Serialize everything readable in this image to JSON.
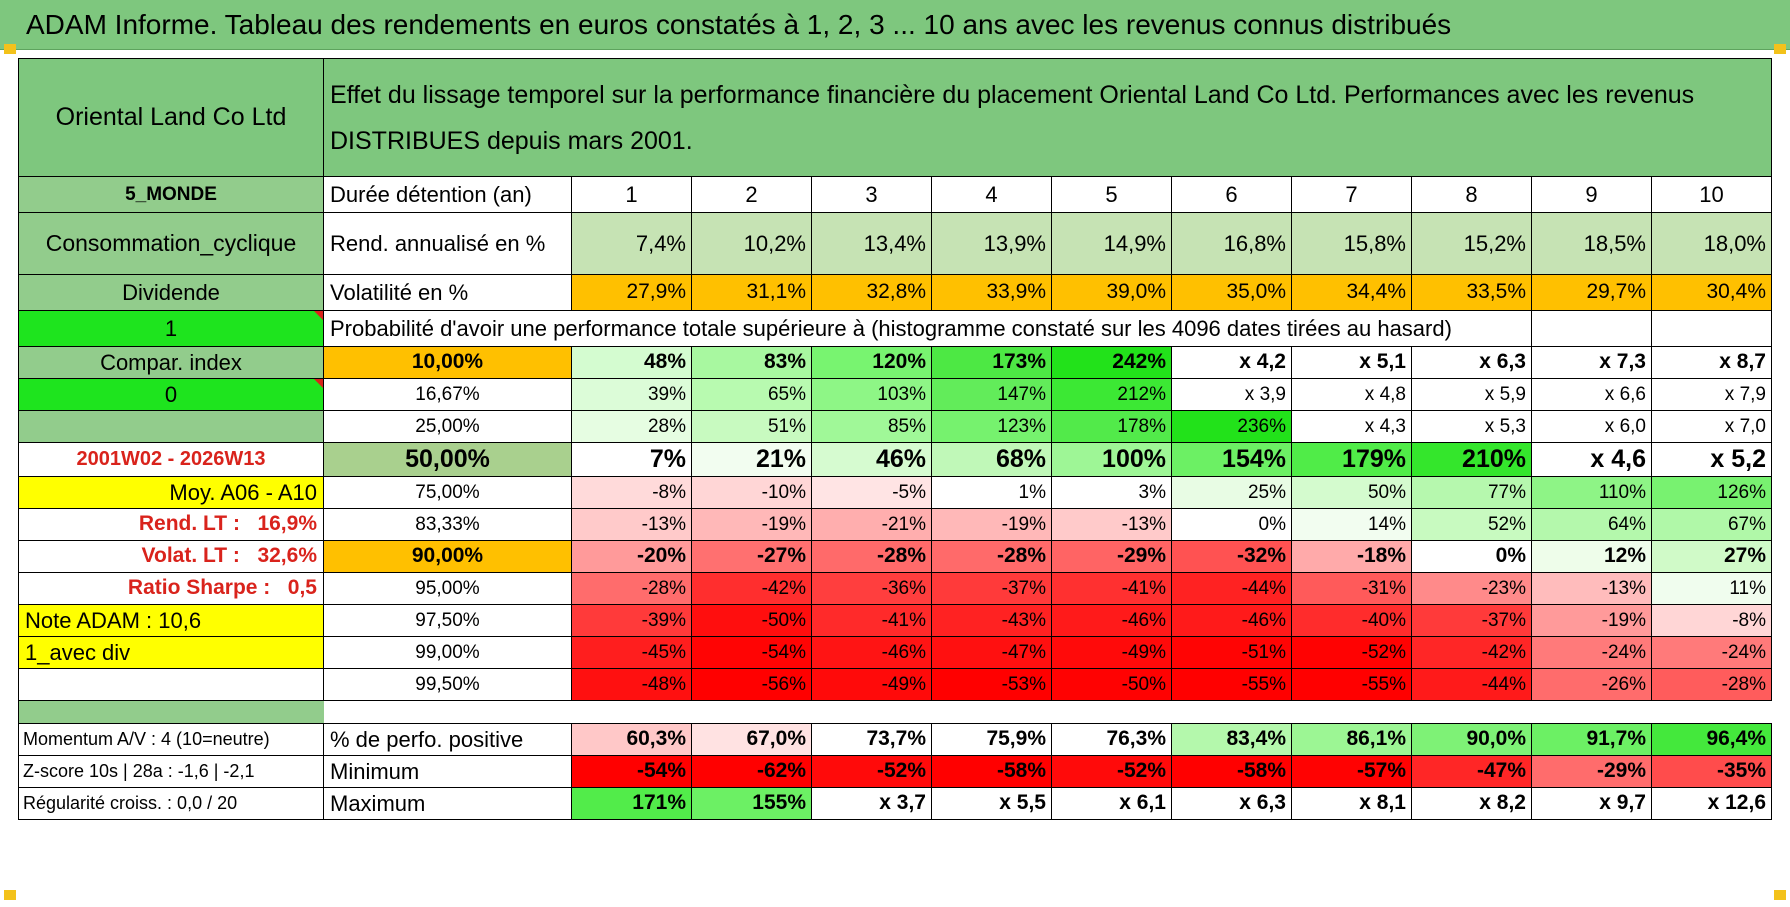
{
  "title": "ADAM Informe. Tableau des rendements en euros constatés à 1, 2, 3 ... 10 ans avec les revenus connus distribués",
  "header": {
    "company": "Oriental Land Co Ltd",
    "description_line1": "Effet du lissage temporel sur la performance financière du placement Oriental Land Co Ltd. Performances avec les revenus",
    "description_line2": "DISTRIBUES depuis mars 2001."
  },
  "left_labels": {
    "region": "5_MONDE",
    "sector": "Consommation_cyclique",
    "type": "Dividende",
    "input1": "1",
    "compar_index": "Compar. index",
    "input0": "0",
    "period": "2001W02 - 2026W13",
    "moy": "Moy. A06 - A10",
    "rend_lt_label": "Rend. LT :",
    "rend_lt_value": "16,9%",
    "volat_lt_label": "Volat. LT :",
    "volat_lt_value": "32,6%",
    "sharpe_label": "Ratio Sharpe :",
    "sharpe_value": "0,5",
    "note_adam": "Note ADAM : 10,6",
    "avec_div": "1_avec div",
    "momentum": "Momentum A/V : 4 (10=neutre)",
    "zscore": "Z-score 10s | 28a : -1,6 | -2,1",
    "regularite": "Régularité croiss. : 0,0 / 20"
  },
  "row_labels": {
    "duree": "Durée détention (an)",
    "rend": "Rend. annualisé en %",
    "vol": "Volatilité en %",
    "proba": "Probabilité d'avoir une performance totale supérieure à (histogramme constaté sur les 4096 dates tirées au hasard)",
    "perf_pos": "% de perfo. positive",
    "minimum": "Minimum",
    "maximum": "Maximum"
  },
  "years": [
    "1",
    "2",
    "3",
    "4",
    "5",
    "6",
    "7",
    "8",
    "9",
    "10"
  ],
  "rend_annualise": [
    "7,4%",
    "10,2%",
    "13,4%",
    "13,9%",
    "14,9%",
    "16,8%",
    "15,8%",
    "15,2%",
    "18,5%",
    "18,0%"
  ],
  "volatilite": [
    "27,9%",
    "31,1%",
    "32,8%",
    "33,9%",
    "39,0%",
    "35,0%",
    "34,4%",
    "33,5%",
    "29,7%",
    "30,4%"
  ],
  "percentile_rows": [
    {
      "pct": "10,00%",
      "values": [
        "48%",
        "83%",
        "120%",
        "173%",
        "242%",
        "x 4,2",
        "x 5,1",
        "x 6,3",
        "x 7,3",
        "x 8,7"
      ]
    },
    {
      "pct": "16,67%",
      "values": [
        "39%",
        "65%",
        "103%",
        "147%",
        "212%",
        "x 3,9",
        "x 4,8",
        "x 5,9",
        "x 6,6",
        "x 7,9"
      ]
    },
    {
      "pct": "25,00%",
      "values": [
        "28%",
        "51%",
        "85%",
        "123%",
        "178%",
        "236%",
        "x 4,3",
        "x 5,3",
        "x 6,0",
        "x 7,0"
      ]
    },
    {
      "pct": "50,00%",
      "values": [
        "7%",
        "21%",
        "46%",
        "68%",
        "100%",
        "154%",
        "179%",
        "210%",
        "x 4,6",
        "x 5,2"
      ]
    },
    {
      "pct": "75,00%",
      "values": [
        "-8%",
        "-10%",
        "-5%",
        "1%",
        "3%",
        "25%",
        "50%",
        "77%",
        "110%",
        "126%"
      ]
    },
    {
      "pct": "83,33%",
      "values": [
        "-13%",
        "-19%",
        "-21%",
        "-19%",
        "-13%",
        "0%",
        "14%",
        "52%",
        "64%",
        "67%"
      ]
    },
    {
      "pct": "90,00%",
      "values": [
        "-20%",
        "-27%",
        "-28%",
        "-28%",
        "-29%",
        "-32%",
        "-18%",
        "0%",
        "12%",
        "27%"
      ]
    },
    {
      "pct": "95,00%",
      "values": [
        "-28%",
        "-42%",
        "-36%",
        "-37%",
        "-41%",
        "-44%",
        "-31%",
        "-23%",
        "-13%",
        "11%"
      ]
    },
    {
      "pct": "97,50%",
      "values": [
        "-39%",
        "-50%",
        "-41%",
        "-43%",
        "-46%",
        "-46%",
        "-40%",
        "-37%",
        "-19%",
        "-8%"
      ]
    },
    {
      "pct": "99,00%",
      "values": [
        "-45%",
        "-54%",
        "-46%",
        "-47%",
        "-49%",
        "-51%",
        "-52%",
        "-42%",
        "-24%",
        "-24%"
      ]
    },
    {
      "pct": "99,50%",
      "values": [
        "-48%",
        "-56%",
        "-49%",
        "-53%",
        "-50%",
        "-55%",
        "-55%",
        "-44%",
        "-26%",
        "-28%"
      ]
    }
  ],
  "perf_positive": [
    "60,3%",
    "67,0%",
    "73,7%",
    "75,9%",
    "76,3%",
    "83,4%",
    "86,1%",
    "90,0%",
    "91,7%",
    "96,4%"
  ],
  "minimum": [
    "-54%",
    "-62%",
    "-52%",
    "-58%",
    "-52%",
    "-58%",
    "-57%",
    "-47%",
    "-29%",
    "-35%"
  ],
  "maximum": [
    "171%",
    "155%",
    "x 3,7",
    "x 5,5",
    "x 6,1",
    "x 6,3",
    "x 8,1",
    "x 8,2",
    "x 9,7",
    "x 12,6"
  ],
  "colors": {
    "header_green": "#7ec77e",
    "label_green": "#92cc8c",
    "bright_green": "#1ee41e",
    "orange": "#ffc000",
    "yellow": "#ffff00",
    "red_text": "#d9231c"
  },
  "cell_colors": {
    "rend": [
      "#c6e3b4",
      "#c6e3b4",
      "#c6e3b4",
      "#c6e3b4",
      "#c6e3b4",
      "#c6e3b4",
      "#c6e3b4",
      "#c6e3b4",
      "#c6e3b4",
      "#c6e3b4"
    ],
    "vol": [
      "#ffc000",
      "#ffc000",
      "#ffc000",
      "#ffc000",
      "#ffc000",
      "#ffc000",
      "#ffc000",
      "#ffc000",
      "#ffc000",
      "#ffc000"
    ],
    "percentiles": [
      [
        "#d4fcd0",
        "#a8f8a0",
        "#78f470",
        "#4de844",
        "#22e21a",
        "#ffffff",
        "#ffffff",
        "#ffffff",
        "#ffffff",
        "#ffffff"
      ],
      [
        "#dcfcd8",
        "#b8fab0",
        "#8ef686",
        "#62ec5a",
        "#3ce834",
        "#ffffff",
        "#ffffff",
        "#ffffff",
        "#ffffff",
        "#ffffff"
      ],
      [
        "#e6fde2",
        "#c8fac0",
        "#a0f898",
        "#76f26e",
        "#52ea4a",
        "#22e21a",
        "#ffffff",
        "#ffffff",
        "#ffffff",
        "#ffffff"
      ],
      [
        "#ffffff",
        "#f2fdf0",
        "#d6fbd0",
        "#c0f8b8",
        "#9ef696",
        "#6cf064",
        "#50ec48",
        "#34e62c",
        "#ffffff",
        "#ffffff"
      ],
      [
        "#ffdada",
        "#ffd6d6",
        "#ffe4e4",
        "#ffffff",
        "#ffffff",
        "#e8fce4",
        "#d4fbce",
        "#b6f8ae",
        "#8ef486",
        "#78f270"
      ],
      [
        "#ffcaca",
        "#ffb8b8",
        "#ffaeae",
        "#ffb8b8",
        "#ffcaca",
        "#ffffff",
        "#f2fdf0",
        "#c8fac0",
        "#b4f8ac",
        "#b0f8a8"
      ],
      [
        "#ff9a9a",
        "#ff7070",
        "#ff6a6a",
        "#ff6a6a",
        "#ff6464",
        "#ff5252",
        "#ffaaaa",
        "#ffffff",
        "#eefdea",
        "#d0fac8"
      ],
      [
        "#ff6c6c",
        "#ff2e2e",
        "#ff3e3e",
        "#ff3a3a",
        "#ff3030",
        "#ff2222",
        "#ff5a5a",
        "#ff8a8a",
        "#ffbcbc",
        "#f0fdee"
      ],
      [
        "#ff3a3a",
        "#ff0e0e",
        "#ff2a2a",
        "#ff2222",
        "#ff1a1a",
        "#ff1a1a",
        "#ff2c2c",
        "#ff3a3a",
        "#ff9a9a",
        "#ffd6d6"
      ],
      [
        "#ff1e1e",
        "#ff0404",
        "#ff1414",
        "#ff1010",
        "#ff0a0a",
        "#ff0404",
        "#ff0202",
        "#ff2626",
        "#ff7a7a",
        "#ff7a7a"
      ],
      [
        "#ff1010",
        "#ff0000",
        "#ff0a0a",
        "#ff0000",
        "#ff0202",
        "#ff0000",
        "#ff0000",
        "#ff1a1a",
        "#ff6c6c",
        "#ff5c5c"
      ]
    ],
    "perf_pos": [
      "#ffc8c8",
      "#ffe2e2",
      "#ffffff",
      "#ffffff",
      "#ffffff",
      "#b4f8ac",
      "#9cf694",
      "#7ef276",
      "#6cf064",
      "#44e83c"
    ],
    "minimum": [
      "#ff0000",
      "#ff0000",
      "#ff0a0a",
      "#ff0000",
      "#ff0a0a",
      "#ff0000",
      "#ff0202",
      "#ff2626",
      "#ff6c6c",
      "#ff4c4c"
    ],
    "maximum": [
      "#52ec4a",
      "#6cf064",
      "#ffffff",
      "#ffffff",
      "#ffffff",
      "#ffffff",
      "#ffffff",
      "#ffffff",
      "#ffffff",
      "#ffffff"
    ]
  }
}
